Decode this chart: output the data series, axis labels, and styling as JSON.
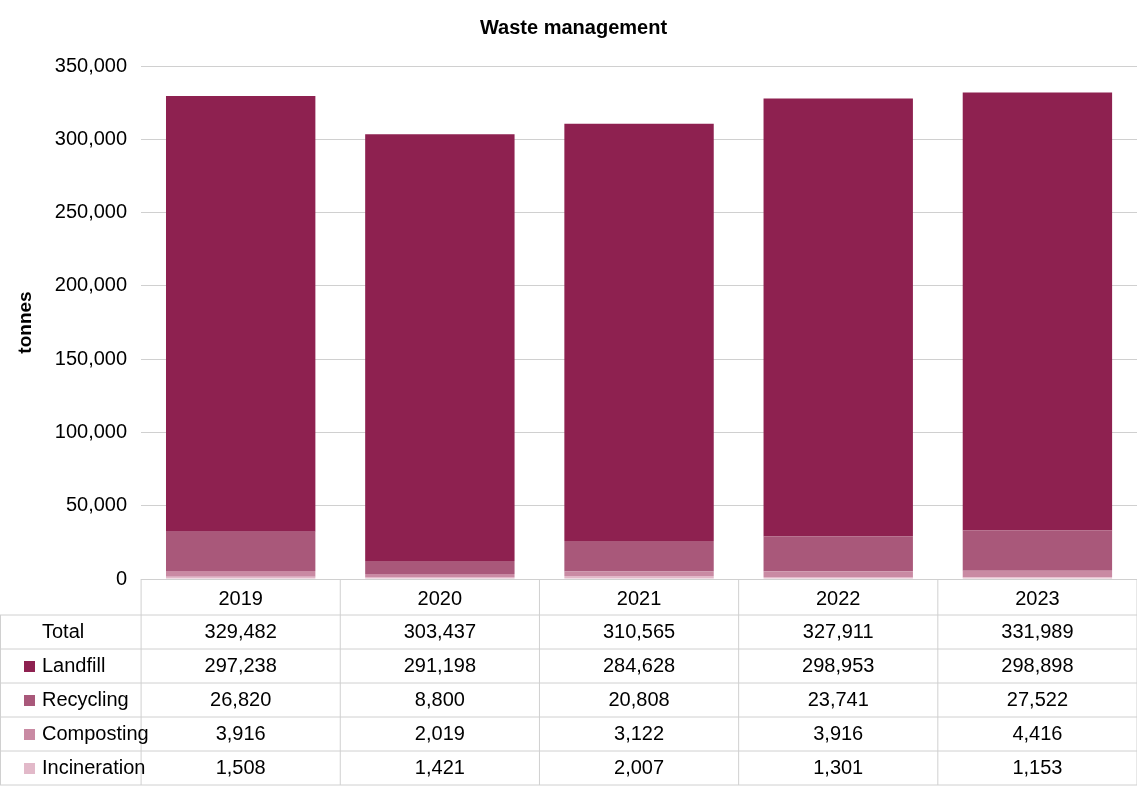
{
  "chart_data": {
    "type": "bar",
    "title": "Waste management",
    "ylabel": "tonnes",
    "categories": [
      "2019",
      "2020",
      "2021",
      "2022",
      "2023"
    ],
    "series": [
      {
        "name": "Incineration",
        "color": "#e2b9c9",
        "values": [
          1508,
          1421,
          2007,
          1301,
          1153
        ],
        "value_labels": [
          "1,508",
          "1,421",
          "2,007",
          "1,301",
          "1,153"
        ]
      },
      {
        "name": "Composting",
        "color": "#c98aa3",
        "values": [
          3916,
          2019,
          3122,
          3916,
          4416
        ],
        "value_labels": [
          "3,916",
          "2,019",
          "3,122",
          "3,916",
          "4,416"
        ]
      },
      {
        "name": "Recycling",
        "color": "#a9587a",
        "values": [
          26820,
          8800,
          20808,
          23741,
          27522
        ],
        "value_labels": [
          "26,820",
          "8,800",
          "20,808",
          "23,741",
          "27,522"
        ]
      },
      {
        "name": "Landfill",
        "color": "#8e2150",
        "values": [
          297238,
          291198,
          284628,
          298953,
          298898
        ],
        "value_labels": [
          "297,238",
          "291,198",
          "284,628",
          "298,953",
          "298,898"
        ]
      }
    ],
    "stacked": true,
    "ylim": [
      0,
      350000
    ],
    "yticks": [
      {
        "value": 0,
        "label": "0"
      },
      {
        "value": 50000,
        "label": "50,000"
      },
      {
        "value": 100000,
        "label": "100,000"
      },
      {
        "value": 150000,
        "label": "150,000"
      },
      {
        "value": 200000,
        "label": "200,000"
      },
      {
        "value": 250000,
        "label": "250,000"
      },
      {
        "value": 300000,
        "label": "300,000"
      },
      {
        "value": 350000,
        "label": "350,000"
      }
    ],
    "grid": "y",
    "legend": "bottom",
    "annotations": [
      "Total"
    ],
    "totals": [
      "329,482",
      "303,437",
      "310,565",
      "327,911",
      "331,989"
    ]
  }
}
